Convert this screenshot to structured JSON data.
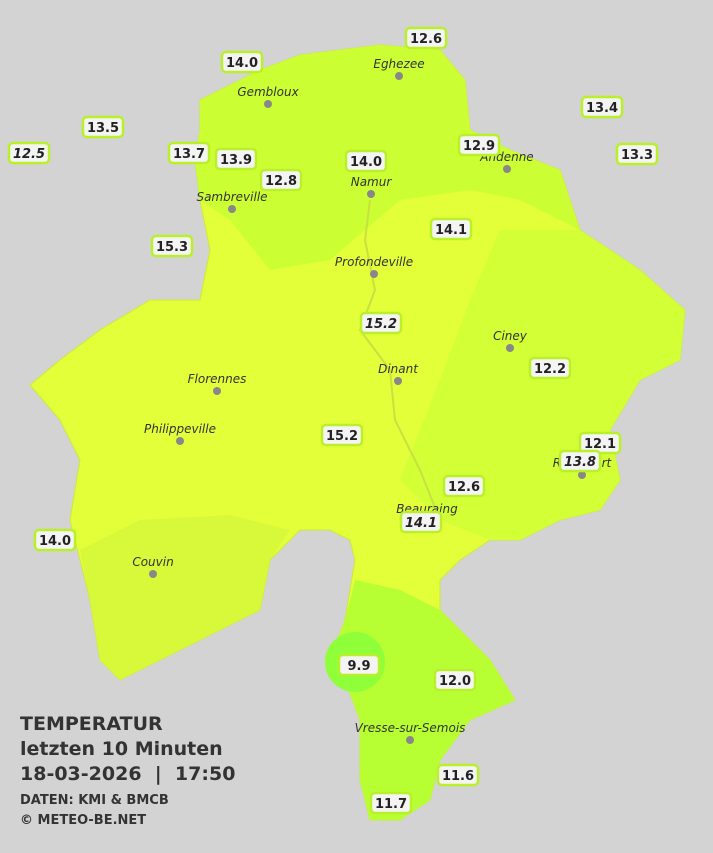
{
  "map": {
    "cities": [
      "Eghezee",
      "Gembloux",
      "Andenne",
      "Namur",
      "Sambreville",
      "Profondeville",
      "Ciney",
      "Florennes",
      "Dinant",
      "Philippeville",
      "Rochefort",
      "Beauraing",
      "Couvin",
      "Vresse-sur-Semois"
    ],
    "stations": [
      {
        "label": "14.0",
        "italic": false
      },
      {
        "label": "12.6",
        "italic": false
      },
      {
        "label": "13.4",
        "italic": false
      },
      {
        "label": "13.5",
        "italic": false
      },
      {
        "label": "12.5",
        "italic": true
      },
      {
        "label": "13.7",
        "italic": false
      },
      {
        "label": "13.9",
        "italic": false
      },
      {
        "label": "12.8",
        "italic": false
      },
      {
        "label": "14.0",
        "italic": false
      },
      {
        "label": "12.9",
        "italic": false
      },
      {
        "label": "13.3",
        "italic": false
      },
      {
        "label": "15.3",
        "italic": false
      },
      {
        "label": "14.1",
        "italic": false
      },
      {
        "label": "15.2",
        "italic": true
      },
      {
        "label": "12.2",
        "italic": false
      },
      {
        "label": "15.2",
        "italic": false
      },
      {
        "label": "12.1",
        "italic": false
      },
      {
        "label": "13.8",
        "italic": true
      },
      {
        "label": "12.6",
        "italic": false
      },
      {
        "label": "14.1",
        "italic": true
      },
      {
        "label": "14.0",
        "italic": false
      },
      {
        "label": "9.9",
        "italic": false
      },
      {
        "label": "12.0",
        "italic": false
      },
      {
        "label": "11.6",
        "italic": false
      },
      {
        "label": "11.7",
        "italic": false
      }
    ]
  },
  "footer": {
    "title": "TEMPERATUR",
    "period": "letzten 10 Minuten",
    "timestamp": "18-03-2026  |  17:50",
    "source": "DATEN: KMI & BMCB",
    "copyright": "© METEO-BE.NET"
  }
}
